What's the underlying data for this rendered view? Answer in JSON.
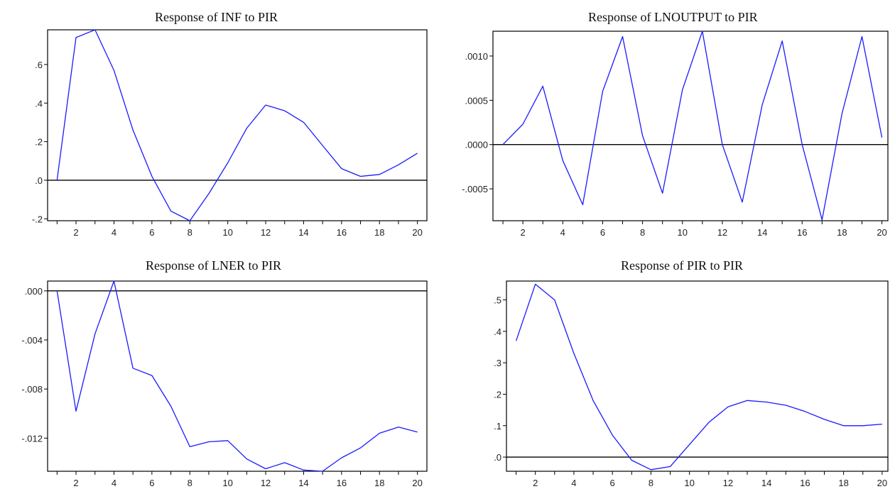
{
  "chart_data": [
    {
      "type": "line",
      "title": "Response of INF to PIR",
      "x": [
        1,
        2,
        3,
        4,
        5,
        6,
        7,
        8,
        9,
        10,
        11,
        12,
        13,
        14,
        15,
        16,
        17,
        18,
        19,
        20
      ],
      "series": [
        {
          "values": [
            0.0,
            0.74,
            0.78,
            0.57,
            0.26,
            0.02,
            -0.16,
            -0.21,
            -0.07,
            0.09,
            0.27,
            0.39,
            0.36,
            0.3,
            0.18,
            0.06,
            0.02,
            0.03,
            0.08,
            0.14
          ],
          "color": "#1a1aff"
        }
      ],
      "xlim": [
        0.5,
        20.5
      ],
      "ylim": [
        -0.21,
        0.78
      ],
      "yticks": [
        -0.2,
        0.0,
        0.2,
        0.4,
        0.6
      ],
      "ytick_labels": [
        "-.2",
        ".0",
        ".2",
        ".4",
        ".6"
      ],
      "xticks": [
        2,
        4,
        6,
        8,
        10,
        12,
        14,
        16,
        18,
        20
      ],
      "xtick_labels": [
        "2",
        "4",
        "6",
        "8",
        "10",
        "12",
        "14",
        "16",
        "18",
        "20"
      ],
      "zero_line": true,
      "grid": false
    },
    {
      "type": "line",
      "title": "Response of LNOUTPUT to PIR",
      "x": [
        1,
        2,
        3,
        4,
        5,
        6,
        7,
        8,
        9,
        10,
        11,
        12,
        13,
        14,
        15,
        16,
        17,
        18,
        19,
        20
      ],
      "series": [
        {
          "values": [
            0.0,
            0.00023,
            0.00066,
            -0.00018,
            -0.00068,
            0.0006,
            0.00122,
            0.0001,
            -0.00055,
            0.00062,
            0.00128,
            0.0,
            -0.00065,
            0.00045,
            0.00117,
            0.0,
            -0.00085,
            0.00035,
            0.00122,
            8e-05
          ],
          "color": "#1a1aff"
        }
      ],
      "xlim": [
        0.5,
        20.3
      ],
      "ylim": [
        -0.00086,
        0.00128
      ],
      "yticks": [
        -0.0005,
        0.0,
        0.0005,
        0.001
      ],
      "ytick_labels": [
        "-.0005",
        ".0000",
        ".0005",
        ".0010"
      ],
      "xticks": [
        2,
        4,
        6,
        8,
        10,
        12,
        14,
        16,
        18,
        20
      ],
      "xtick_labels": [
        "2",
        "4",
        "6",
        "8",
        "10",
        "12",
        "14",
        "16",
        "18",
        "20"
      ],
      "zero_line": true,
      "grid": false
    },
    {
      "type": "line",
      "title": "Response of LNER to PIR",
      "x": [
        1,
        2,
        3,
        4,
        5,
        6,
        7,
        8,
        9,
        10,
        11,
        12,
        13,
        14,
        15,
        16,
        17,
        18,
        19,
        20
      ],
      "series": [
        {
          "values": [
            0.0,
            -0.0098,
            -0.0035,
            0.0008,
            -0.0063,
            -0.0069,
            -0.0094,
            -0.0127,
            -0.0123,
            -0.0122,
            -0.0137,
            -0.0145,
            -0.014,
            -0.0146,
            -0.0147,
            -0.0136,
            -0.0128,
            -0.0116,
            -0.0111,
            -0.0115
          ],
          "color": "#1a1aff"
        }
      ],
      "xlim": [
        0.5,
        20.5
      ],
      "ylim": [
        -0.0147,
        0.0008
      ],
      "yticks": [
        -0.012,
        -0.008,
        -0.004,
        0.0
      ],
      "ytick_labels": [
        "-.012",
        "-.008",
        "-.004",
        ".000"
      ],
      "xticks": [
        2,
        4,
        6,
        8,
        10,
        12,
        14,
        16,
        18,
        20
      ],
      "xtick_labels": [
        "2",
        "4",
        "6",
        "8",
        "10",
        "12",
        "14",
        "16",
        "18",
        "20"
      ],
      "zero_line": true,
      "grid": false
    },
    {
      "type": "line",
      "title": "Response of PIR to PIR",
      "x": [
        1,
        2,
        3,
        4,
        5,
        6,
        7,
        8,
        9,
        10,
        11,
        12,
        13,
        14,
        15,
        16,
        17,
        18,
        19,
        20
      ],
      "series": [
        {
          "values": [
            0.37,
            0.55,
            0.5,
            0.33,
            0.18,
            0.07,
            -0.01,
            -0.04,
            -0.03,
            0.04,
            0.11,
            0.16,
            0.18,
            0.175,
            0.165,
            0.145,
            0.12,
            0.1,
            0.1,
            0.105
          ],
          "color": "#1a1aff"
        }
      ],
      "xlim": [
        0.5,
        20.3
      ],
      "ylim": [
        -0.045,
        0.56
      ],
      "yticks": [
        0.0,
        0.1,
        0.2,
        0.3,
        0.4,
        0.5
      ],
      "ytick_labels": [
        ".0",
        ".1",
        ".2",
        ".3",
        ".4",
        ".5"
      ],
      "xticks": [
        2,
        4,
        6,
        8,
        10,
        12,
        14,
        16,
        18,
        20
      ],
      "xtick_labels": [
        "2",
        "4",
        "6",
        "8",
        "10",
        "12",
        "14",
        "16",
        "18",
        "20"
      ],
      "zero_line": true,
      "grid": false
    }
  ]
}
